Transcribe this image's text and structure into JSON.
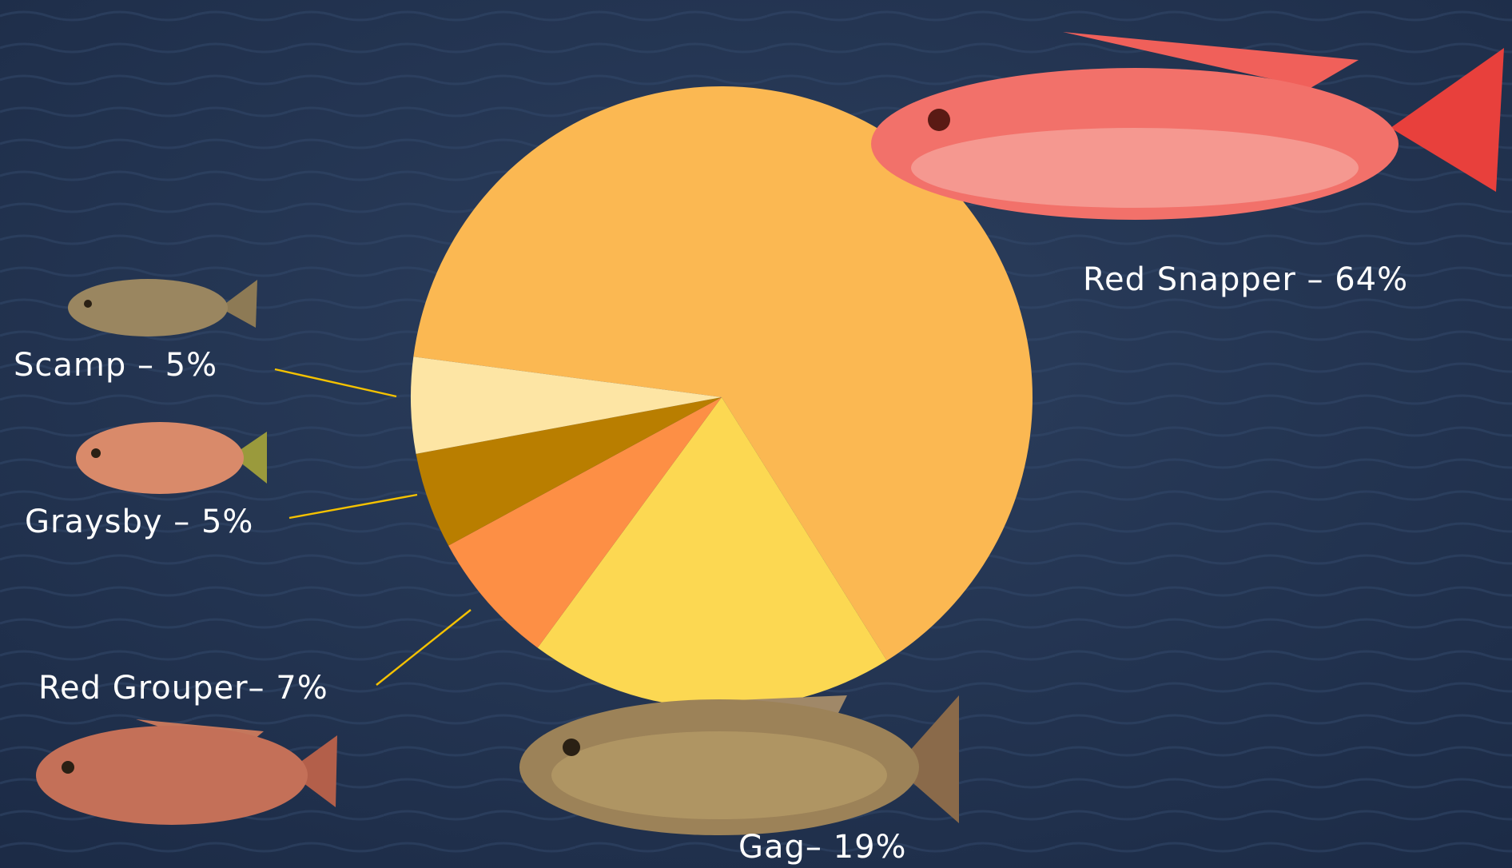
{
  "chart_data": {
    "type": "pie",
    "values": [
      64,
      19,
      7,
      5,
      5
    ],
    "value_labels": [
      "Red Snapper – 64%",
      "Gag– 19%",
      "Red Grouper– 7%",
      "Graysby – 5%",
      "Scamp – 5%"
    ],
    "colors": [
      "#fbb852",
      "#fcd852",
      "#fd8f45",
      "#b97e00",
      "#fde5a4"
    ]
  }
}
